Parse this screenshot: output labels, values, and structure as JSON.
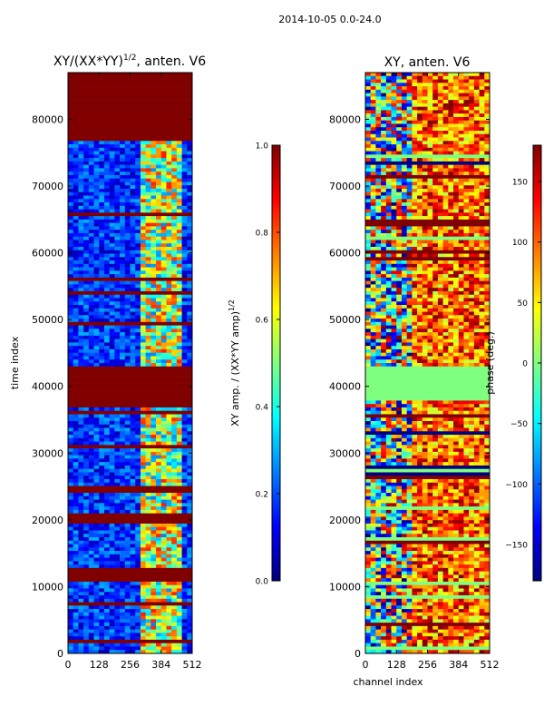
{
  "figure_title": "2014-10-05 0.0-24.0",
  "colors": {
    "jet": [
      "#00007f",
      "#0000ff",
      "#007fff",
      "#00ffff",
      "#7fff7f",
      "#ffff00",
      "#ff7f00",
      "#ff0000",
      "#7f0000"
    ],
    "flag_amp": "#800000",
    "flag_phase": "#7fff7f",
    "frame": "#000000"
  },
  "chart_data": [
    {
      "type": "heatmap",
      "name": "amplitude",
      "title_prefix": "XY/(XX*YY)",
      "title_exponent": "1/2",
      "title_suffix": ", anten. V6",
      "xlabel": "",
      "ylabel": "time index",
      "xlim": [
        0,
        512
      ],
      "ylim": [
        0,
        87000
      ],
      "x_ticks": [
        0,
        128,
        256,
        384,
        512
      ],
      "x_tick_labels": [
        "0",
        "128",
        "256",
        "384",
        "512"
      ],
      "y_ticks": [
        0,
        10000,
        20000,
        30000,
        40000,
        50000,
        60000,
        70000,
        80000
      ],
      "y_tick_labels": [
        "0",
        "10000",
        "20000",
        "30000",
        "40000",
        "50000",
        "60000",
        "70000",
        "80000"
      ],
      "flagged_time_ranges": [
        [
          37000,
          42800
        ],
        [
          77000,
          87000
        ],
        [
          19500,
          21000
        ],
        [
          10800,
          12600
        ]
      ],
      "colorbar": {
        "label_main": "XY amp. / (XX*YY amp)",
        "label_exponent": "1/2",
        "min": 0.0,
        "max": 1.0,
        "ticks": [
          0.0,
          0.2,
          0.4,
          0.6,
          0.8,
          1.0
        ],
        "tick_labels": [
          "0.0",
          "0.2",
          "0.4",
          "0.6",
          "0.8",
          "1.0"
        ]
      }
    },
    {
      "type": "heatmap",
      "name": "phase",
      "title": "XY, anten. V6",
      "xlabel": "channel index",
      "ylabel": "",
      "xlim": [
        0,
        512
      ],
      "ylim": [
        0,
        87000
      ],
      "x_ticks": [
        0,
        128,
        256,
        384,
        512
      ],
      "x_tick_labels": [
        "0",
        "128",
        "256",
        "384",
        "512"
      ],
      "y_ticks": [
        0,
        10000,
        20000,
        30000,
        40000,
        50000,
        60000,
        70000,
        80000
      ],
      "y_tick_labels": [
        "0",
        "10000",
        "20000",
        "30000",
        "40000",
        "50000",
        "60000",
        "70000",
        "80000"
      ],
      "flagged_time_ranges": [
        [
          38000,
          42800
        ]
      ],
      "colorbar": {
        "label_main": "phase (deg.)",
        "min": -180,
        "max": 180,
        "ticks": [
          -150,
          -100,
          -50,
          0,
          50,
          100,
          150
        ],
        "tick_labels": [
          "−150",
          "−100",
          "−50",
          "0",
          "50",
          "100",
          "150"
        ]
      }
    }
  ]
}
